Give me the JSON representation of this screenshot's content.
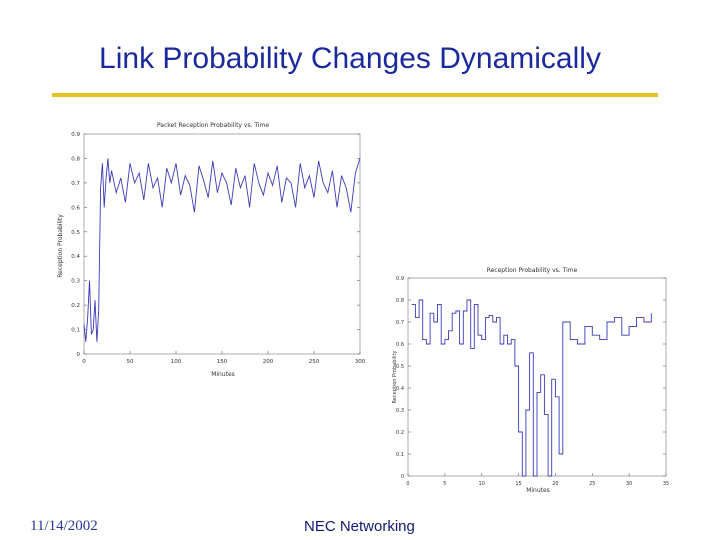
{
  "slide": {
    "title": "Link Probability Changes Dynamically",
    "date": "11/14/2002",
    "organization": "NEC Networking",
    "accent_color": "#e6c21e",
    "title_color": "#1a2a9c"
  },
  "chart_data": [
    {
      "type": "line",
      "title": "Packet Reception Probability vs. Time",
      "xlabel": "Minutes",
      "ylabel": "Reception Probability",
      "xlim": [
        0,
        300
      ],
      "ylim": [
        0,
        0.9
      ],
      "xticks": [
        0,
        50,
        100,
        150,
        200,
        250,
        300
      ],
      "yticks": [
        0,
        0.1,
        0.2,
        0.3,
        0.4,
        0.5,
        0.6,
        0.7,
        0.8,
        0.9
      ],
      "series": [
        {
          "color": "#3a3ab8",
          "x": [
            0,
            2,
            4,
            6,
            8,
            10,
            12,
            14,
            16,
            18,
            20,
            22,
            24,
            26,
            28,
            30,
            35,
            40,
            45,
            50,
            55,
            60,
            65,
            70,
            75,
            80,
            85,
            90,
            95,
            100,
            105,
            110,
            115,
            120,
            125,
            130,
            135,
            140,
            145,
            150,
            155,
            160,
            165,
            170,
            175,
            180,
            185,
            190,
            195,
            200,
            205,
            210,
            215,
            220,
            225,
            230,
            235,
            240,
            245,
            250,
            255,
            260,
            265,
            270,
            275,
            280,
            285,
            290,
            295,
            300
          ],
          "y": [
            0.12,
            0.05,
            0.15,
            0.3,
            0.08,
            0.1,
            0.22,
            0.05,
            0.18,
            0.68,
            0.78,
            0.6,
            0.72,
            0.8,
            0.7,
            0.75,
            0.66,
            0.72,
            0.62,
            0.78,
            0.7,
            0.74,
            0.63,
            0.78,
            0.68,
            0.72,
            0.6,
            0.76,
            0.7,
            0.78,
            0.65,
            0.73,
            0.69,
            0.58,
            0.77,
            0.71,
            0.64,
            0.79,
            0.66,
            0.74,
            0.7,
            0.61,
            0.76,
            0.68,
            0.73,
            0.6,
            0.78,
            0.7,
            0.65,
            0.74,
            0.69,
            0.77,
            0.62,
            0.72,
            0.7,
            0.6,
            0.78,
            0.68,
            0.73,
            0.64,
            0.79,
            0.7,
            0.66,
            0.75,
            0.6,
            0.73,
            0.68,
            0.58,
            0.74,
            0.8
          ]
        }
      ]
    },
    {
      "type": "line",
      "title": "Reception Probability vs. Time",
      "xlabel": "Minutes",
      "ylabel": "Reception Probability",
      "xlim": [
        0,
        35
      ],
      "ylim": [
        0,
        0.9
      ],
      "xticks": [
        0,
        5,
        10,
        15,
        20,
        25,
        30,
        35
      ],
      "yticks": [
        0,
        0.1,
        0.2,
        0.3,
        0.4,
        0.5,
        0.6,
        0.7,
        0.8,
        0.9
      ],
      "series": [
        {
          "color": "#3a3ab8",
          "x": [
            0.5,
            1,
            1.5,
            2,
            2.5,
            3,
            3.5,
            4,
            4.5,
            5,
            5.5,
            6,
            6.5,
            7,
            7.5,
            8,
            8.5,
            9,
            9.5,
            10,
            10.5,
            11,
            11.5,
            12,
            12.5,
            13,
            13.5,
            14,
            14.5,
            15,
            15.5,
            16,
            16.5,
            17,
            17.5,
            18,
            18.5,
            19,
            19.5,
            20,
            20.5,
            21,
            22,
            23,
            24,
            25,
            26,
            27,
            28,
            29,
            30,
            31,
            32,
            33
          ],
          "y": [
            0.78,
            0.72,
            0.8,
            0.62,
            0.6,
            0.74,
            0.7,
            0.78,
            0.6,
            0.62,
            0.66,
            0.74,
            0.75,
            0.6,
            0.75,
            0.8,
            0.58,
            0.78,
            0.64,
            0.62,
            0.72,
            0.73,
            0.7,
            0.72,
            0.6,
            0.64,
            0.6,
            0.62,
            0.5,
            0.2,
            0.0,
            0.3,
            0.56,
            0.0,
            0.38,
            0.46,
            0.28,
            0.0,
            0.44,
            0.36,
            0.1,
            0.7,
            0.62,
            0.6,
            0.68,
            0.64,
            0.62,
            0.7,
            0.72,
            0.64,
            0.68,
            0.72,
            0.7,
            0.74
          ]
        }
      ]
    }
  ]
}
